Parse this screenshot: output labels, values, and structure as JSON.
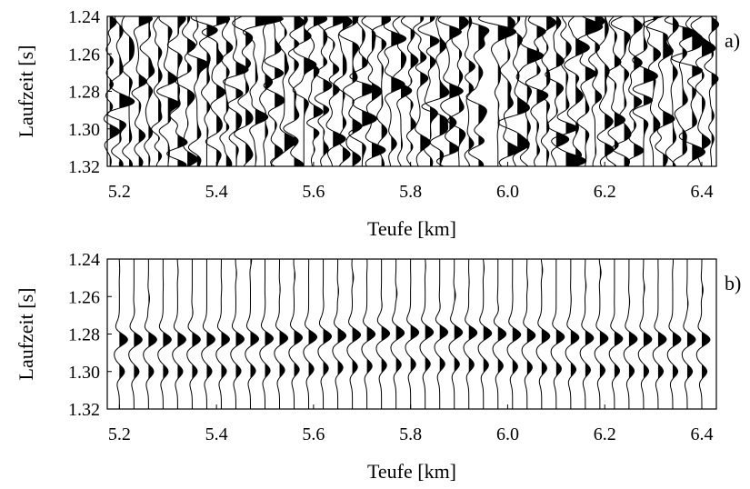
{
  "chart_data": [
    {
      "type": "wiggle",
      "panel_label": "a)",
      "xlabel": "Teufe [km]",
      "ylabel": "Laufzeit [s]",
      "xlim": [
        5.175,
        6.43
      ],
      "ylim": [
        1.32,
        1.24
      ],
      "y_inverted": true,
      "color": "#000000",
      "xticks": [
        5.2,
        5.4,
        5.6,
        5.8,
        {
          "value": 6,
          "label": "6.0"
        },
        6.2,
        6.4
      ],
      "yticks": [
        1.24,
        1.26,
        1.28,
        {
          "value": 1.3,
          "label": "1.30"
        },
        1.32
      ],
      "x": [
        5.18,
        5.2,
        5.22,
        5.24,
        5.26,
        5.28,
        5.3,
        5.32,
        5.34,
        5.36,
        5.38,
        5.4,
        5.42,
        5.44,
        5.46,
        5.48,
        5.5,
        5.52,
        5.54,
        5.56,
        5.58,
        5.6,
        5.62,
        5.64,
        5.66,
        5.68,
        5.7,
        5.72,
        5.74,
        5.76,
        5.78,
        5.8,
        5.82,
        5.84,
        5.86,
        5.88,
        5.9,
        5.92,
        5.94,
        5.98,
        6,
        6.02,
        6.04,
        6.06,
        6.08,
        6.1,
        6.12,
        6.14,
        6.16,
        6.18,
        6.2,
        6.22,
        6.24,
        6.26,
        6.28,
        6.3,
        6.32,
        6.34,
        6.36,
        6.38,
        6.4,
        6.42
      ]
    },
    {
      "type": "wiggle",
      "panel_label": "b)",
      "xlabel": "Teufe [km]",
      "ylabel": "Laufzeit [s]",
      "xlim": [
        5.175,
        6.43
      ],
      "ylim": [
        1.32,
        1.24
      ],
      "y_inverted": true,
      "color": "#000000",
      "xticks": [
        5.2,
        5.4,
        5.6,
        5.8,
        {
          "value": 6,
          "label": "6.0"
        },
        6.2,
        6.4
      ],
      "yticks": [
        1.24,
        1.26,
        1.28,
        {
          "value": 1.3,
          "label": "1.30"
        },
        1.32
      ],
      "x": [
        5.2,
        5.23,
        5.26,
        5.29,
        5.32,
        5.35,
        5.38,
        5.41,
        5.44,
        5.47,
        5.5,
        5.53,
        5.56,
        5.59,
        5.62,
        5.65,
        5.68,
        5.71,
        5.74,
        5.77,
        5.8,
        5.83,
        5.86,
        5.89,
        5.92,
        5.95,
        5.98,
        6.01,
        6.04,
        6.07,
        6.1,
        6.13,
        6.16,
        6.19,
        6.22,
        6.25,
        6.28,
        6.31,
        6.34,
        6.37,
        6.4
      ]
    }
  ]
}
